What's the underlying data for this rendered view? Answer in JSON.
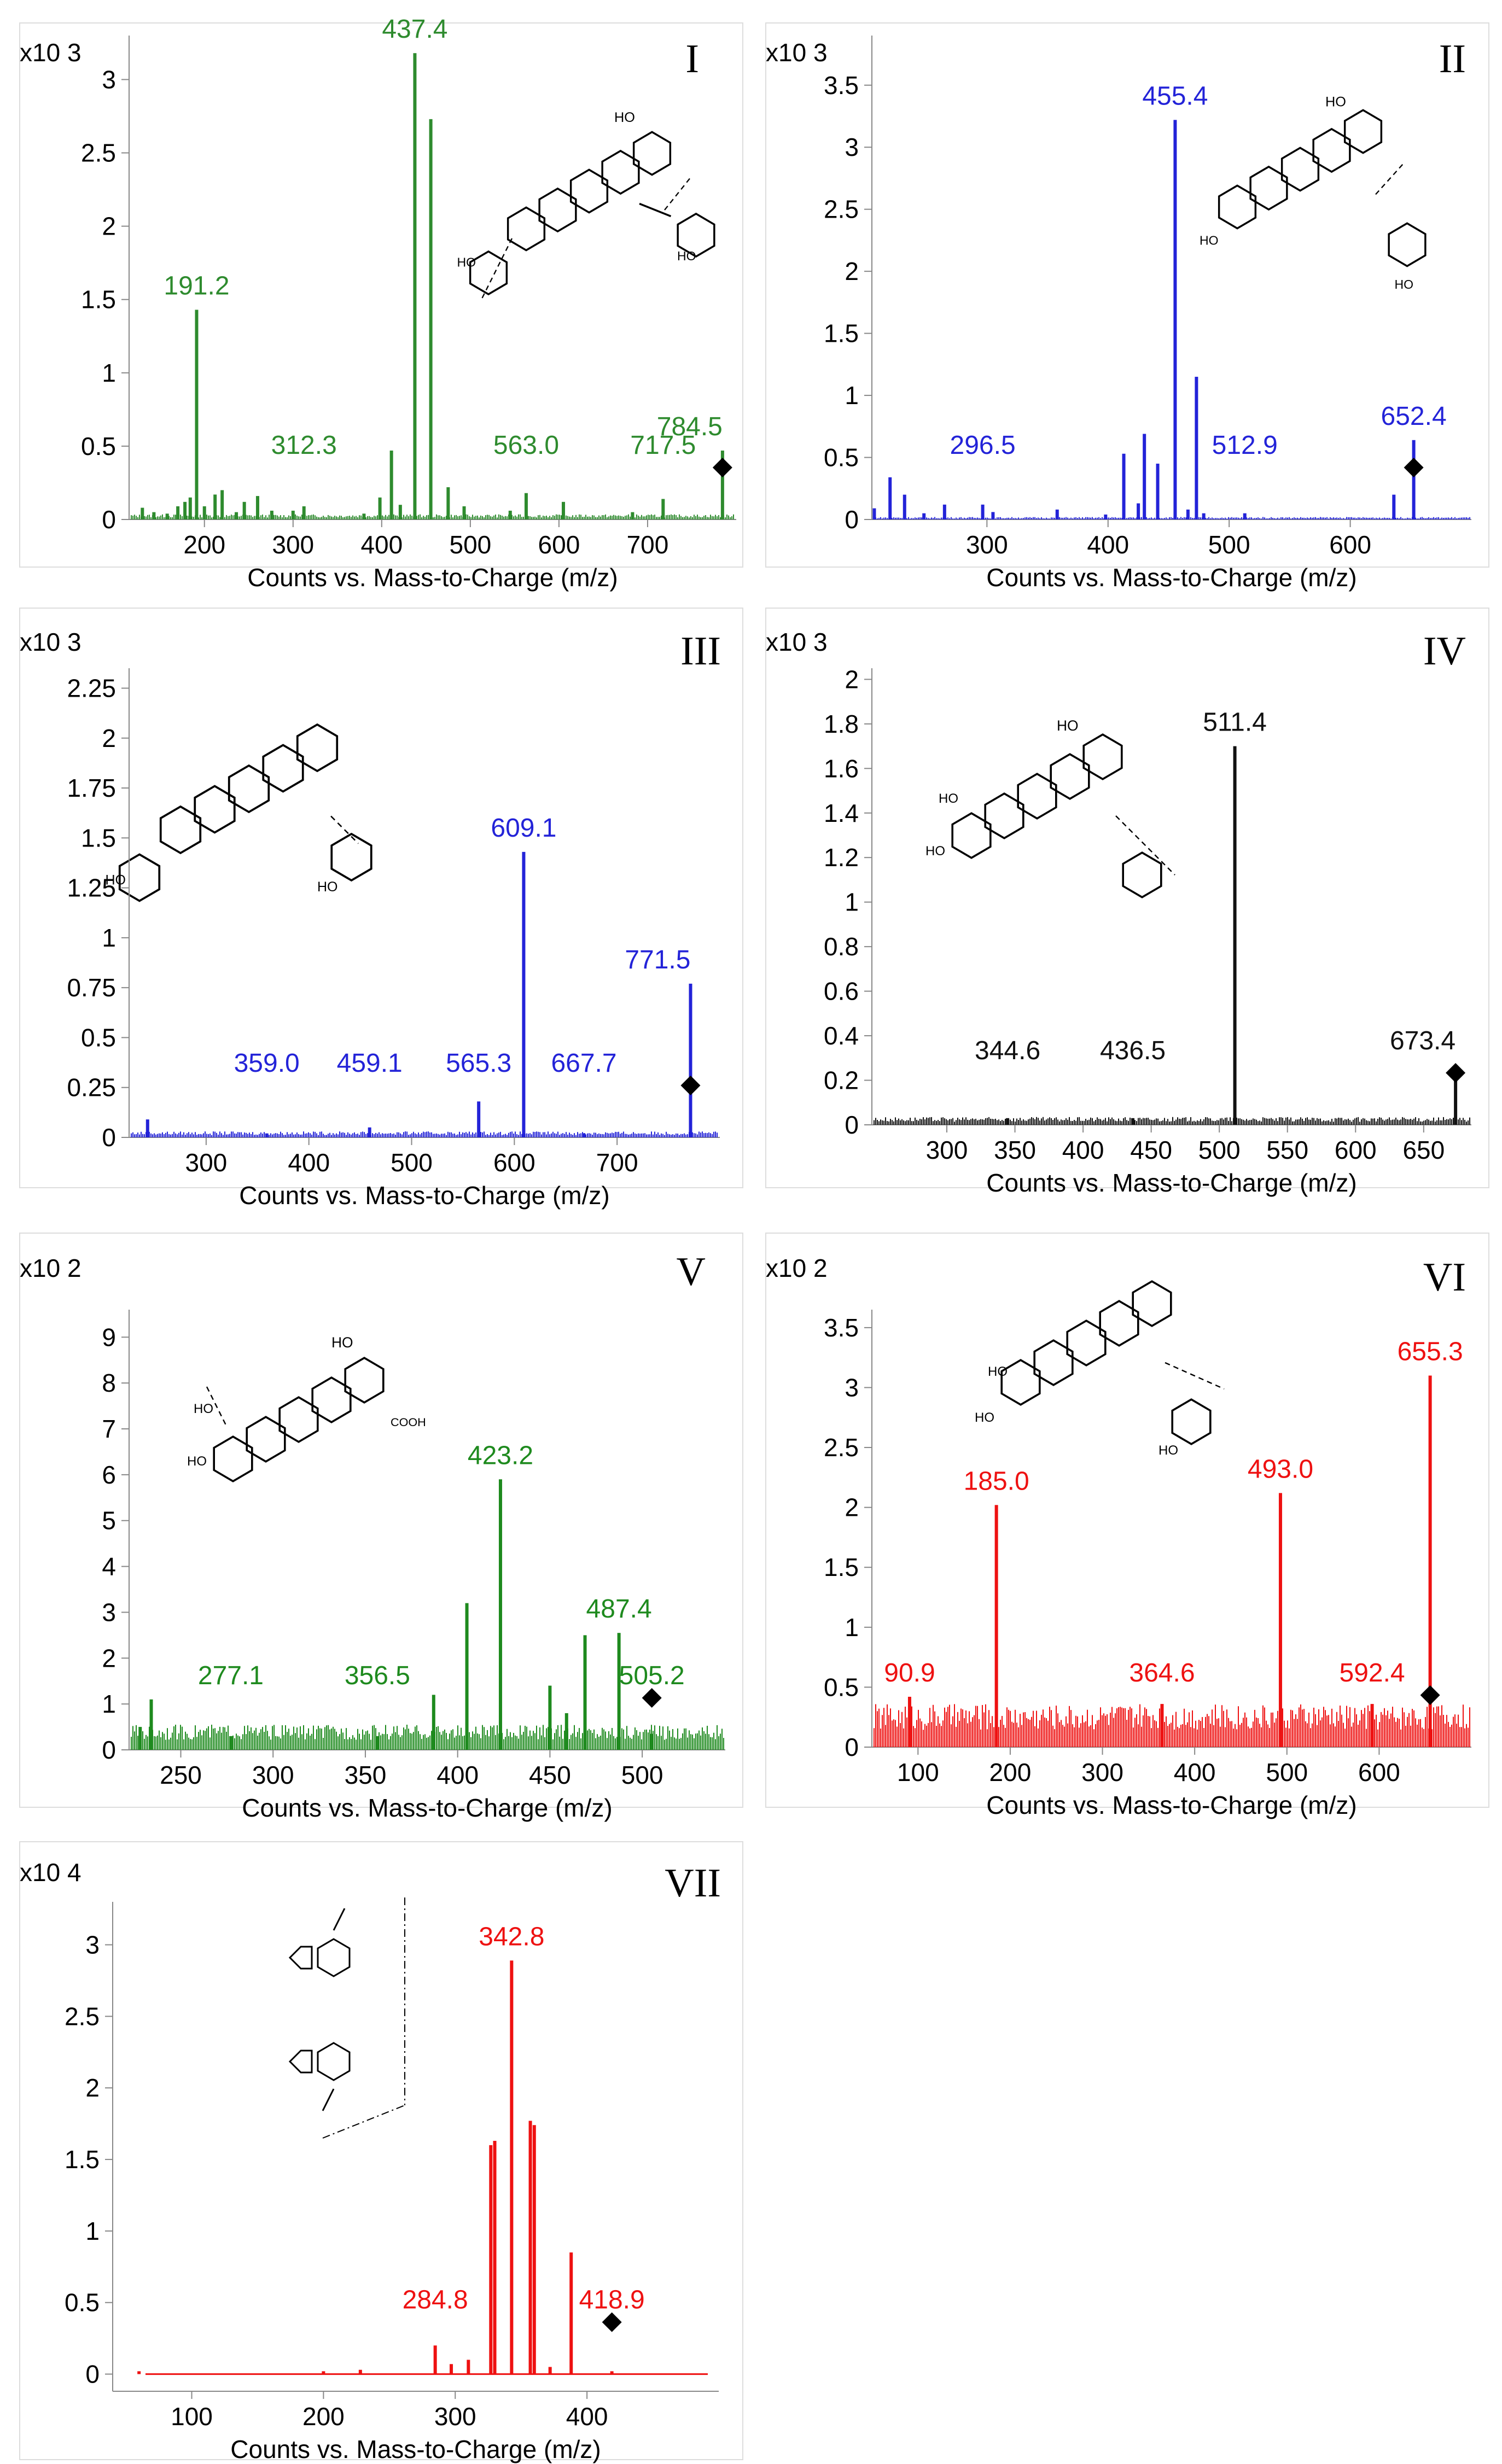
{
  "figure": {
    "xlabel": "Counts vs. Mass-to-Charge (m/z)"
  },
  "chart_data": [
    {
      "type": "bar",
      "id": "I",
      "title": "I",
      "color": "#2e8b2e",
      "xlabel": "Counts vs. Mass-to-Charge (m/z)",
      "ylabel": "",
      "multiplier": "x10 3",
      "xlim": [
        115,
        800
      ],
      "ylim": [
        0,
        3.3
      ],
      "xticks": [
        200,
        300,
        400,
        500,
        600,
        700
      ],
      "yticks": [
        0,
        0.5,
        1,
        1.5,
        2,
        2.5,
        3
      ],
      "peaks": [
        [
          130,
          0.08
        ],
        [
          143,
          0.05
        ],
        [
          158,
          0.04
        ],
        [
          170,
          0.09
        ],
        [
          178,
          0.12
        ],
        [
          184,
          0.15
        ],
        [
          191.2,
          1.43
        ],
        [
          200,
          0.09
        ],
        [
          212,
          0.17
        ],
        [
          220,
          0.2
        ],
        [
          236,
          0.05
        ],
        [
          245,
          0.12
        ],
        [
          260,
          0.16
        ],
        [
          276,
          0.06
        ],
        [
          300,
          0.06
        ],
        [
          312.3,
          0.09
        ],
        [
          380,
          0.04
        ],
        [
          398,
          0.15
        ],
        [
          411,
          0.47
        ],
        [
          421,
          0.1
        ],
        [
          437.4,
          3.18
        ],
        [
          455.4,
          2.73
        ],
        [
          475,
          0.22
        ],
        [
          493,
          0.09
        ],
        [
          545,
          0.06
        ],
        [
          563,
          0.18
        ],
        [
          605,
          0.12
        ],
        [
          683,
          0.05
        ],
        [
          717.5,
          0.14
        ],
        [
          784.5,
          0.47
        ]
      ],
      "noise": 0.035,
      "labels": [
        {
          "x": 437.4,
          "y": 3.18,
          "text": "437.4"
        },
        {
          "x": 191.2,
          "y": 1.43,
          "text": "191.2"
        },
        {
          "x": 312.3,
          "y": 0.09,
          "text": "312.3"
        },
        {
          "x": 563.0,
          "y": 0.18,
          "text": "563.0"
        },
        {
          "x": 717.5,
          "y": 0.14,
          "text": "717.5"
        },
        {
          "x": 784.5,
          "y": 0.47,
          "text": "784.5"
        }
      ],
      "precursor": 784.5
    },
    {
      "type": "bar",
      "id": "II",
      "title": "II",
      "color": "#2323d8",
      "xlabel": "Counts vs. Mass-to-Charge (m/z)",
      "ylabel": "",
      "multiplier": "x10 3",
      "xlim": [
        205,
        700
      ],
      "ylim": [
        0,
        3.9
      ],
      "xticks": [
        300,
        400,
        500,
        600
      ],
      "yticks": [
        0,
        0.5,
        1,
        1.5,
        2,
        2.5,
        3,
        3.5
      ],
      "peaks": [
        [
          207,
          0.09
        ],
        [
          220,
          0.34
        ],
        [
          232,
          0.2
        ],
        [
          248,
          0.05
        ],
        [
          265,
          0.12
        ],
        [
          296.5,
          0.12
        ],
        [
          305,
          0.06
        ],
        [
          358,
          0.08
        ],
        [
          398,
          0.04
        ],
        [
          413,
          0.53
        ],
        [
          425,
          0.13
        ],
        [
          430,
          0.69
        ],
        [
          441,
          0.45
        ],
        [
          455.4,
          3.22
        ],
        [
          466,
          0.08
        ],
        [
          473,
          1.15
        ],
        [
          479,
          0.05
        ],
        [
          512.9,
          0.05
        ],
        [
          636,
          0.2
        ],
        [
          652.4,
          0.64
        ]
      ],
      "noise": 0.02,
      "labels": [
        {
          "x": 455.4,
          "y": 3.22,
          "text": "455.4"
        },
        {
          "x": 296.5,
          "y": 0.12,
          "text": "296.5"
        },
        {
          "x": 512.9,
          "y": 0.05,
          "text": "512.9"
        },
        {
          "x": 652.4,
          "y": 0.64,
          "text": "652.4"
        }
      ],
      "precursor": 652.4
    },
    {
      "type": "bar",
      "id": "III",
      "title": "III",
      "color": "#2323d8",
      "xlabel": "Counts vs. Mass-to-Charge (m/z)",
      "ylabel": "",
      "multiplier": "x10 3",
      "xlim": [
        225,
        800
      ],
      "ylim": [
        0,
        2.35
      ],
      "xticks": [
        300,
        400,
        500,
        600,
        700
      ],
      "yticks": [
        0,
        0.25,
        0.5,
        0.75,
        1,
        1.25,
        1.5,
        1.75,
        2,
        2.25
      ],
      "peaks": [
        [
          243,
          0.09
        ],
        [
          359,
          0.02
        ],
        [
          459.1,
          0.05
        ],
        [
          565.3,
          0.18
        ],
        [
          609.1,
          1.43
        ],
        [
          667.7,
          0.02
        ],
        [
          771.5,
          0.77
        ]
      ],
      "noise": 0.03,
      "labels": [
        {
          "x": 609.1,
          "y": 1.43,
          "text": "609.1"
        },
        {
          "x": 359.0,
          "y": 0.02,
          "text": "359.0"
        },
        {
          "x": 459.1,
          "y": 0.05,
          "text": "459.1"
        },
        {
          "x": 565.3,
          "y": 0.18,
          "text": "565.3"
        },
        {
          "x": 667.7,
          "y": 0.02,
          "text": "667.7"
        },
        {
          "x": 771.5,
          "y": 0.77,
          "text": "771.5"
        }
      ],
      "precursor": 771.5
    },
    {
      "type": "bar",
      "id": "IV",
      "title": "IV",
      "color": "#111111",
      "xlabel": "Counts vs. Mass-to-Charge (m/z)",
      "ylabel": "",
      "multiplier": "x10 3",
      "xlim": [
        245,
        685
      ],
      "ylim": [
        0,
        2.05
      ],
      "xticks": [
        300,
        350,
        400,
        450,
        500,
        550,
        600,
        650
      ],
      "yticks": [
        0,
        0.2,
        0.4,
        0.6,
        0.8,
        1,
        1.2,
        1.4,
        1.6,
        1.8,
        2
      ],
      "peaks": [
        [
          344.6,
          0.03
        ],
        [
          436.5,
          0.03
        ],
        [
          511.4,
          1.7
        ],
        [
          673.4,
          0.27
        ]
      ],
      "noise": 0.035,
      "labels": [
        {
          "x": 511.4,
          "y": 1.7,
          "text": "511.4"
        },
        {
          "x": 344.6,
          "y": 0.03,
          "text": "344.6"
        },
        {
          "x": 436.5,
          "y": 0.03,
          "text": "436.5"
        },
        {
          "x": 673.4,
          "y": 0.27,
          "text": "673.4"
        }
      ],
      "precursor": 673.4
    },
    {
      "type": "bar",
      "id": "V",
      "title": "V",
      "color": "#1e8a1e",
      "xlabel": "Counts vs. Mass-to-Charge (m/z)",
      "ylabel": "",
      "multiplier": "x10 2",
      "xlim": [
        222,
        545
      ],
      "ylim": [
        0,
        9.6
      ],
      "xticks": [
        250,
        300,
        350,
        400,
        450,
        500
      ],
      "yticks": [
        0,
        1,
        2,
        3,
        4,
        5,
        6,
        7,
        8,
        9
      ],
      "peaks": [
        [
          228,
          0.5
        ],
        [
          234,
          1.1
        ],
        [
          277.1,
          0.3
        ],
        [
          356.5,
          0.3
        ],
        [
          387,
          1.2
        ],
        [
          405,
          3.2
        ],
        [
          423.2,
          5.9
        ],
        [
          450,
          1.4
        ],
        [
          459,
          0.8
        ],
        [
          469,
          2.5
        ],
        [
          487.4,
          2.55
        ],
        [
          505.2,
          0.35
        ]
      ],
      "noise": 0.55,
      "labels": [
        {
          "x": 423.2,
          "y": 5.9,
          "text": "423.2"
        },
        {
          "x": 277.1,
          "y": 0.3,
          "text": "277.1"
        },
        {
          "x": 356.5,
          "y": 0.3,
          "text": "356.5"
        },
        {
          "x": 487.4,
          "y": 2.55,
          "text": "487.4"
        },
        {
          "x": 505.2,
          "y": 0.35,
          "text": "505.2"
        }
      ],
      "precursor": 505.2
    },
    {
      "type": "bar",
      "id": "VI",
      "title": "VI",
      "color": "#ee1111",
      "xlabel": "Counts vs. Mass-to-Charge (m/z)",
      "ylabel": "",
      "multiplier": "x10 2",
      "xlim": [
        50,
        700
      ],
      "ylim": [
        0,
        3.65
      ],
      "xticks": [
        100,
        200,
        300,
        400,
        500,
        600
      ],
      "yticks": [
        0,
        0.5,
        1,
        1.5,
        2,
        2.5,
        3,
        3.5
      ],
      "peaks": [
        [
          90.9,
          0.42
        ],
        [
          185,
          2.02
        ],
        [
          364.6,
          0.36
        ],
        [
          493,
          2.12
        ],
        [
          592.4,
          0.36
        ],
        [
          655.3,
          3.1
        ]
      ],
      "noise": 0.36,
      "labels": [
        {
          "x": 655.3,
          "y": 3.1,
          "text": "655.3"
        },
        {
          "x": 185.0,
          "y": 2.02,
          "text": "185.0"
        },
        {
          "x": 493.0,
          "y": 2.12,
          "text": "493.0"
        },
        {
          "x": 90.9,
          "y": 0.42,
          "text": "90.9"
        },
        {
          "x": 364.6,
          "y": 0.36,
          "text": "364.6"
        },
        {
          "x": 592.4,
          "y": 0.36,
          "text": "592.4"
        }
      ],
      "precursor": 655.3
    },
    {
      "type": "line",
      "id": "VII",
      "title": "VII",
      "color": "#ee1111",
      "xlabel": "Counts vs. Mass-to-Charge (m/z)",
      "ylabel": "",
      "multiplier": "x10 4",
      "xlim": [
        40,
        500
      ],
      "ylim": [
        -0.12,
        3.3
      ],
      "xticks": [
        100,
        200,
        300,
        400
      ],
      "yticks": [
        0,
        0.5,
        1,
        1.5,
        2,
        2.5,
        3
      ],
      "peaks": [
        [
          60,
          0.02
        ],
        [
          200,
          0.02
        ],
        [
          228,
          0.03
        ],
        [
          284.8,
          0.2
        ],
        [
          297,
          0.07
        ],
        [
          310,
          0.1
        ],
        [
          327,
          1.6
        ],
        [
          330,
          1.63
        ],
        [
          342.8,
          2.89
        ],
        [
          357,
          1.77
        ],
        [
          360,
          1.74
        ],
        [
          372,
          0.05
        ],
        [
          388,
          0.85
        ],
        [
          418.9,
          0.02
        ]
      ],
      "noise": 0.0,
      "labels": [
        {
          "x": 342.8,
          "y": 2.89,
          "text": "342.8"
        },
        {
          "x": 284.8,
          "y": 0.2,
          "text": "284.8"
        },
        {
          "x": 418.9,
          "y": 0.02,
          "text": "418.9"
        }
      ],
      "precursor": 418.9
    }
  ]
}
